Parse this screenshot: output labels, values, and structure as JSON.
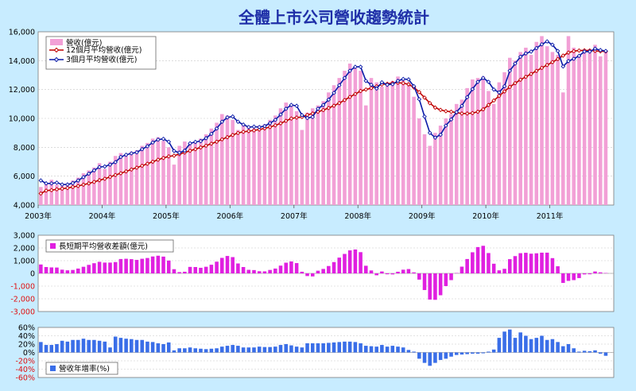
{
  "chart_data": [
    {
      "type": "bar",
      "title": "全體上市公司營收趨勢統計",
      "x_start": "2003-01",
      "x_tick_labels": [
        "2003年",
        "2004年",
        "2005年",
        "2006年",
        "2007年",
        "2008年",
        "2009年",
        "2010年",
        "2011年"
      ],
      "ylim": [
        4000,
        16000
      ],
      "y_ticks": [
        "4,000",
        "6,000",
        "8,000",
        "10,000",
        "12,000",
        "14,000",
        "16,000"
      ],
      "grid": true,
      "legend_position": "top-left",
      "series": [
        {
          "name": "營收(億元)",
          "kind": "bar",
          "color": "#f2a0d6",
          "values": [
            5250,
            5500,
            5750,
            5400,
            5350,
            5500,
            5700,
            5900,
            6200,
            6400,
            6600,
            6900,
            6500,
            7000,
            7400,
            7600,
            7450,
            7700,
            7800,
            8100,
            8300,
            8600,
            8700,
            8450,
            8000,
            6800,
            8100,
            8400,
            8300,
            8400,
            8600,
            8900,
            9300,
            9700,
            10300,
            10200,
            9900,
            9200,
            9600,
            9400,
            9300,
            9500,
            9600,
            9900,
            10200,
            10700,
            11100,
            11000,
            10500,
            9200,
            10400,
            10700,
            10900,
            11200,
            11800,
            12300,
            12800,
            13300,
            13800,
            13600,
            13300,
            10900,
            12800,
            12500,
            12200,
            12300,
            12600,
            12900,
            12700,
            12500,
            11500,
            10000,
            8900,
            8100,
            9000,
            9500,
            10000,
            10300,
            11000,
            11300,
            12100,
            12700,
            12800,
            12900,
            11900,
            11000,
            12500,
            13200,
            14200,
            14000,
            14600,
            14900,
            14400,
            15300,
            15700,
            15000,
            14600,
            14400,
            11800,
            15700,
            14900,
            14400,
            14600,
            14800,
            15100,
            14300,
            14600
          ]
        },
        {
          "name": "12個月平均營收(億元)",
          "kind": "line",
          "color": "#c00000",
          "marker": "diamond",
          "values": [
            4800,
            5000,
            5030,
            5090,
            5130,
            5180,
            5250,
            5320,
            5410,
            5500,
            5600,
            5720,
            5820,
            5950,
            6080,
            6200,
            6330,
            6460,
            6590,
            6720,
            6860,
            7000,
            7140,
            7260,
            7370,
            7420,
            7530,
            7640,
            7760,
            7870,
            7990,
            8110,
            8250,
            8380,
            8550,
            8700,
            8850,
            8990,
            9070,
            9120,
            9170,
            9230,
            9310,
            9400,
            9520,
            9660,
            9830,
            9990,
            10060,
            10100,
            10240,
            10340,
            10460,
            10580,
            10720,
            10880,
            11060,
            11270,
            11490,
            11690,
            11900,
            12000,
            12100,
            12220,
            12350,
            12400,
            12450,
            12470,
            12440,
            12360,
            12150,
            11820,
            11440,
            11060,
            10750,
            10590,
            10500,
            10460,
            10400,
            10340,
            10340,
            10370,
            10460,
            10630,
            10930,
            11240,
            11560,
            11870,
            12180,
            12440,
            12680,
            12880,
            13080,
            13290,
            13500,
            13700,
            13900,
            14110,
            14350,
            14560,
            14660,
            14700,
            14710,
            14700,
            14680,
            14650,
            14640
          ]
        },
        {
          "name": "3個月平均營收(億元)",
          "kind": "line",
          "color": "#0a1aa8",
          "marker": "diamond",
          "values": [
            5700,
            5500,
            5500,
            5550,
            5420,
            5420,
            5520,
            5700,
            5930,
            6170,
            6400,
            6630,
            6670,
            6800,
            6970,
            7330,
            7480,
            7580,
            7650,
            7870,
            8070,
            8330,
            8530,
            8580,
            8380,
            7750,
            7630,
            7770,
            8270,
            8370,
            8430,
            8630,
            8930,
            9300,
            9770,
            10070,
            10130,
            9770,
            9570,
            9400,
            9430,
            9400,
            9470,
            9670,
            9900,
            10270,
            10670,
            10930,
            10870,
            10230,
            10030,
            10100,
            10670,
            10930,
            11300,
            11770,
            12300,
            12800,
            13300,
            13570,
            13570,
            12600,
            12330,
            12070,
            12500,
            12330,
            12370,
            12600,
            12730,
            12700,
            12230,
            11330,
            10130,
            9000,
            8670,
            8870,
            9500,
            9930,
            10430,
            10870,
            11470,
            12030,
            12530,
            12800,
            12530,
            12000,
            11800,
            12230,
            13300,
            13800,
            14270,
            14500,
            14630,
            14870,
            15130,
            15330,
            15100,
            14670,
            13600,
            13970,
            14130,
            14330,
            14630,
            14630,
            14830,
            14730,
            14670
          ]
        }
      ]
    },
    {
      "type": "bar",
      "x_start": "2003-01",
      "ylim": [
        -3000,
        3000
      ],
      "y_ticks": [
        "-3,000",
        "-2,000",
        "-1,000",
        "0",
        "1,000",
        "2,000",
        "3,000"
      ],
      "grid": true,
      "legend_position": "top-left",
      "series": [
        {
          "name": "長短期平均營收差額(億元)",
          "color": "#e020e0",
          "values": [
            700,
            500,
            470,
            460,
            290,
            240,
            270,
            380,
            520,
            670,
            800,
            910,
            850,
            850,
            890,
            1130,
            1150,
            1120,
            1060,
            1150,
            1210,
            1330,
            1390,
            1320,
            1010,
            330,
            100,
            130,
            510,
            500,
            440,
            520,
            680,
            920,
            1220,
            1370,
            1280,
            780,
            500,
            280,
            260,
            170,
            160,
            270,
            380,
            610,
            840,
            940,
            810,
            130,
            -210,
            -240,
            210,
            350,
            580,
            890,
            1240,
            1530,
            1810,
            1880,
            1670,
            600,
            230,
            -150,
            150,
            -70,
            -80,
            130,
            290,
            340,
            80,
            -490,
            -1310,
            -2060,
            -2080,
            -1720,
            -1000,
            -530,
            30,
            530,
            1130,
            1660,
            2070,
            2170,
            1600,
            760,
            240,
            360,
            1120,
            1360,
            1590,
            1620,
            1550,
            1580,
            1630,
            1630,
            1200,
            560,
            -750,
            -590,
            -530,
            -370,
            -80,
            -70,
            150,
            80,
            30
          ]
        }
      ]
    },
    {
      "type": "bar",
      "x_start": "2003-01",
      "ylim": [
        -60,
        60
      ],
      "y_ticks": [
        "-60%",
        "-40%",
        "-20%",
        "0%",
        "20%",
        "40%",
        "60%"
      ],
      "grid": true,
      "legend_position": "bottom-left",
      "series": [
        {
          "name": "營收年增率(%)",
          "color": "#3a6ee8",
          "values": [
            25,
            18,
            18,
            20,
            28,
            26,
            30,
            30,
            33,
            30,
            30,
            28,
            26,
            12,
            38,
            35,
            33,
            32,
            30,
            30,
            26,
            25,
            22,
            20,
            24,
            5,
            10,
            10,
            12,
            10,
            9,
            8,
            9,
            10,
            14,
            16,
            18,
            16,
            12,
            12,
            12,
            14,
            13,
            13,
            14,
            18,
            20,
            17,
            14,
            12,
            22,
            22,
            22,
            22,
            23,
            24,
            25,
            26,
            26,
            25,
            22,
            16,
            15,
            14,
            18,
            14,
            16,
            14,
            12,
            6,
            2,
            -15,
            -25,
            -32,
            -25,
            -18,
            -15,
            -10,
            -6,
            -5,
            -4,
            -3,
            -3,
            -2,
            2,
            7,
            35,
            50,
            55,
            35,
            48,
            40,
            32,
            35,
            40,
            30,
            32,
            25,
            15,
            20,
            10,
            2,
            4,
            3,
            5,
            -3,
            -8
          ]
        }
      ]
    }
  ]
}
